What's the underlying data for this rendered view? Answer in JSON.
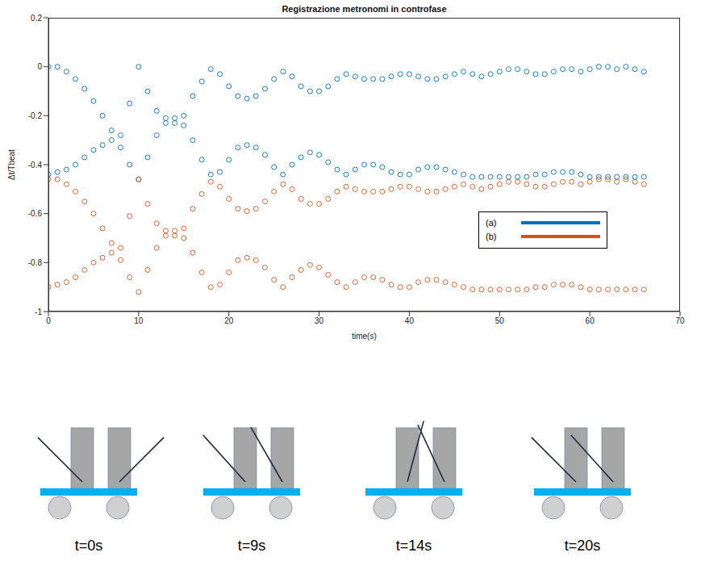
{
  "chart_data": {
    "type": "scatter",
    "title": "Registrazione metronomi in controfase",
    "x_label": "time(s)",
    "y_label": "Δt/Tbeat",
    "x": [
      0,
      1,
      2,
      3,
      4,
      5,
      6,
      7,
      8,
      9,
      10,
      11,
      12,
      13,
      14,
      15,
      16,
      17,
      18,
      19,
      20,
      21,
      22,
      23,
      24,
      25,
      26,
      27,
      28,
      29,
      30,
      31,
      32,
      33,
      34,
      35,
      36,
      37,
      38,
      39,
      40,
      41,
      42,
      43,
      44,
      45,
      46,
      47,
      48,
      49,
      50,
      51,
      52,
      53,
      54,
      55,
      56,
      57,
      58,
      59,
      60,
      61,
      62,
      63,
      64,
      65,
      66
    ],
    "xlim": [
      0,
      70
    ],
    "xticks": [
      0,
      10,
      20,
      30,
      40,
      50,
      60,
      70
    ],
    "ylim": [
      -1,
      0.2
    ],
    "yticks": [
      -1,
      -0.8,
      -0.6,
      -0.4,
      -0.2,
      0,
      0.2
    ],
    "grid": false,
    "legend": "right",
    "series": [
      {
        "name": "(a)",
        "color": "#0072bd",
        "marker": "circle",
        "branches": [
          [
            0,
            0,
            -0.02,
            -0.05,
            -0.09,
            -0.14,
            -0.2,
            -0.26,
            -0.28,
            -0.15,
            0,
            -0.1,
            -0.18,
            -0.21,
            -0.21,
            -0.2,
            -0.12,
            -0.06,
            -0.01,
            -0.03,
            -0.08,
            -0.12,
            -0.13,
            -0.12,
            -0.09,
            -0.05,
            -0.02,
            -0.04,
            -0.08,
            -0.1,
            -0.1,
            -0.08,
            -0.05,
            -0.03,
            -0.04,
            -0.05,
            -0.05,
            -0.05,
            -0.04,
            -0.03,
            -0.03,
            -0.04,
            -0.05,
            -0.05,
            -0.04,
            -0.03,
            -0.02,
            -0.03,
            -0.04,
            -0.03,
            -0.02,
            -0.01,
            -0.01,
            -0.02,
            -0.03,
            -0.03,
            -0.02,
            -0.01,
            -0.01,
            -0.02,
            -0.01,
            0,
            0,
            -0.01,
            0,
            -0.01,
            -0.02
          ],
          [
            -0.44,
            -0.43,
            -0.42,
            -0.4,
            -0.37,
            -0.34,
            -0.32,
            -0.3,
            -0.33,
            -0.4,
            -0.46,
            -0.37,
            -0.28,
            -0.23,
            -0.23,
            -0.24,
            -0.3,
            -0.38,
            -0.44,
            -0.43,
            -0.38,
            -0.33,
            -0.32,
            -0.33,
            -0.36,
            -0.41,
            -0.44,
            -0.4,
            -0.37,
            -0.35,
            -0.36,
            -0.39,
            -0.42,
            -0.44,
            -0.42,
            -0.4,
            -0.4,
            -0.41,
            -0.43,
            -0.44,
            -0.44,
            -0.42,
            -0.41,
            -0.41,
            -0.42,
            -0.43,
            -0.44,
            -0.45,
            -0.45,
            -0.45,
            -0.45,
            -0.45,
            -0.45,
            -0.45,
            -0.44,
            -0.44,
            -0.43,
            -0.43,
            -0.43,
            -0.44,
            -0.45,
            -0.45,
            -0.45,
            -0.45,
            -0.45,
            -0.45,
            -0.45
          ]
        ]
      },
      {
        "name": "(b)",
        "color": "#d95319",
        "marker": "circle",
        "branches": [
          [
            -0.46,
            -0.46,
            -0.48,
            -0.51,
            -0.55,
            -0.6,
            -0.66,
            -0.72,
            -0.74,
            -0.61,
            -0.46,
            -0.56,
            -0.64,
            -0.67,
            -0.67,
            -0.66,
            -0.58,
            -0.52,
            -0.47,
            -0.49,
            -0.54,
            -0.58,
            -0.59,
            -0.58,
            -0.55,
            -0.51,
            -0.48,
            -0.5,
            -0.54,
            -0.56,
            -0.56,
            -0.54,
            -0.51,
            -0.49,
            -0.5,
            -0.51,
            -0.51,
            -0.51,
            -0.5,
            -0.49,
            -0.49,
            -0.5,
            -0.51,
            -0.51,
            -0.5,
            -0.49,
            -0.48,
            -0.49,
            -0.5,
            -0.49,
            -0.48,
            -0.47,
            -0.47,
            -0.48,
            -0.49,
            -0.49,
            -0.48,
            -0.47,
            -0.47,
            -0.48,
            -0.47,
            -0.46,
            -0.46,
            -0.47,
            -0.46,
            -0.47,
            -0.48
          ],
          [
            -0.9,
            -0.89,
            -0.88,
            -0.86,
            -0.83,
            -0.8,
            -0.78,
            -0.76,
            -0.79,
            -0.86,
            -0.92,
            -0.83,
            -0.74,
            -0.69,
            -0.69,
            -0.7,
            -0.76,
            -0.84,
            -0.9,
            -0.89,
            -0.84,
            -0.79,
            -0.78,
            -0.79,
            -0.82,
            -0.87,
            -0.9,
            -0.86,
            -0.83,
            -0.81,
            -0.82,
            -0.85,
            -0.88,
            -0.9,
            -0.88,
            -0.86,
            -0.86,
            -0.87,
            -0.89,
            -0.9,
            -0.9,
            -0.88,
            -0.87,
            -0.87,
            -0.88,
            -0.89,
            -0.9,
            -0.91,
            -0.91,
            -0.91,
            -0.91,
            -0.91,
            -0.91,
            -0.91,
            -0.9,
            -0.9,
            -0.89,
            -0.89,
            -0.89,
            -0.9,
            -0.91,
            -0.91,
            -0.91,
            -0.91,
            -0.91,
            -0.91,
            -0.91
          ]
        ]
      }
    ]
  },
  "diagram": {
    "panels": [
      {
        "label": "t=0s"
      },
      {
        "label": "t=9s"
      },
      {
        "label": "t=14s"
      },
      {
        "label": "t=20s"
      }
    ]
  }
}
